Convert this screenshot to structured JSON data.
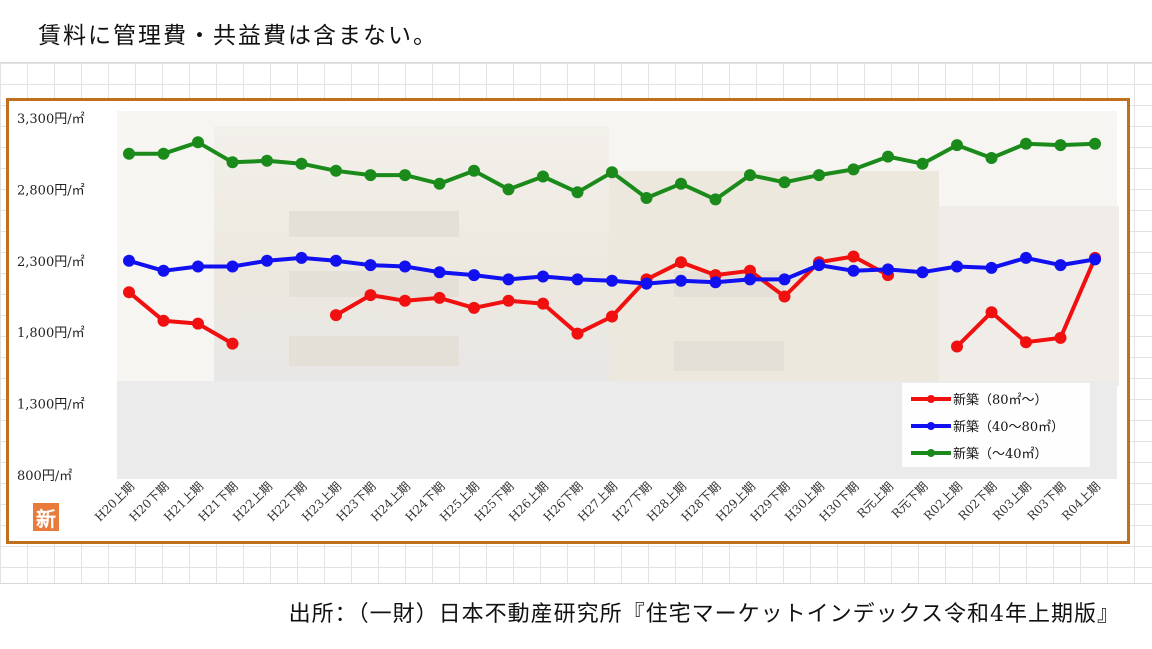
{
  "header": {
    "note": "賃料に管理費・共益費は含まない。"
  },
  "footer": {
    "source": "出所：（一財）日本不動産研究所『住宅マーケットインデックス令和4年上期版』"
  },
  "badge": {
    "text": "新"
  },
  "colors": {
    "frame": "#c0701d",
    "red": "#f01010",
    "blue": "#1010f0",
    "green": "#1a8a1a"
  },
  "chart_data": {
    "type": "line",
    "x": [
      "H20上期",
      "H20下期",
      "H21上期",
      "H21下期",
      "H22上期",
      "H22下期",
      "H23上期",
      "H23下期",
      "H24上期",
      "H24下期",
      "H25上期",
      "H25下期",
      "H26上期",
      "H26下期",
      "H27上期",
      "H27下期",
      "H28上期",
      "H28下期",
      "H29上期",
      "H29下期",
      "H30上期",
      "H30下期",
      "R元上期",
      "R元下期",
      "R02上期",
      "R02下期",
      "R03上期",
      "R03下期",
      "R04上期"
    ],
    "ylim": [
      800,
      3300
    ],
    "yticks": [
      800,
      1300,
      1800,
      2300,
      2800,
      3300
    ],
    "ytick_labels": [
      "800円/㎡",
      "1,300円/㎡",
      "1,800円/㎡",
      "2,300円/㎡",
      "2,800円/㎡",
      "3,300円/㎡"
    ],
    "legend_position": "bottom-right",
    "series": [
      {
        "name": "新築（80㎡～）",
        "color": "#f01010",
        "values": [
          2080,
          1880,
          1860,
          1720,
          null,
          null,
          1920,
          2060,
          2020,
          2040,
          1970,
          2020,
          2000,
          1790,
          1910,
          2170,
          2290,
          2200,
          2230,
          2050,
          2290,
          2330,
          2200,
          null,
          1700,
          1940,
          1730,
          1760,
          2320
        ]
      },
      {
        "name": "新築（40～80㎡）",
        "color": "#1010f0",
        "values": [
          2300,
          2230,
          2260,
          2260,
          2300,
          2320,
          2300,
          2270,
          2260,
          2220,
          2200,
          2170,
          2190,
          2170,
          2160,
          2140,
          2160,
          2150,
          2170,
          2170,
          2270,
          2230,
          2240,
          2220,
          2260,
          2250,
          2320,
          2270,
          2310
        ]
      },
      {
        "name": "新築（～40㎡）",
        "color": "#1a8a1a",
        "values": [
          3050,
          3050,
          3130,
          2990,
          3000,
          2980,
          2930,
          2900,
          2900,
          2840,
          2930,
          2800,
          2890,
          2780,
          2920,
          2740,
          2840,
          2730,
          2900,
          2850,
          2900,
          2940,
          3030,
          2980,
          3110,
          3020,
          3120,
          3110,
          3120
        ]
      }
    ]
  }
}
